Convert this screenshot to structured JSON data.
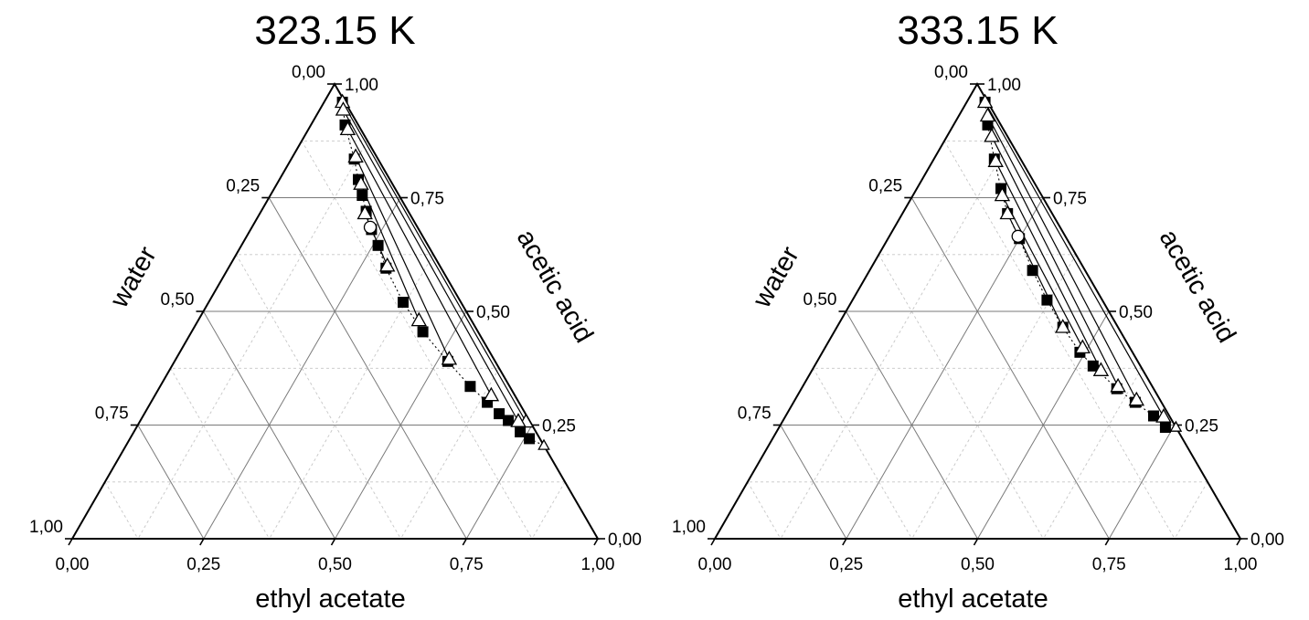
{
  "chart_data": [
    {
      "type": "scatter",
      "subtype": "ternary",
      "title": "323.15 K",
      "axes": {
        "bottom": {
          "label": "ethyl acetate",
          "ticks": [
            "0,00",
            "0,25",
            "0,50",
            "0,75",
            "1,00"
          ]
        },
        "left": {
          "label": "water",
          "ticks": [
            "0,00",
            "0,25",
            "0,50",
            "0,75",
            "1,00"
          ]
        },
        "right": {
          "label": "acetic acid",
          "ticks": [
            "1,00",
            "0,75",
            "0,50",
            "0,25",
            "0,00"
          ]
        }
      },
      "grid": true,
      "solubility_curve": [
        [
          0.035,
          0.005
        ],
        [
          0.065,
          0.025
        ],
        [
          0.12,
          0.045
        ],
        [
          0.15,
          0.06
        ],
        [
          0.175,
          0.07
        ],
        [
          0.2,
          0.08
        ],
        [
          0.23,
          0.09
        ],
        [
          0.26,
          0.095
        ],
        [
          0.3,
          0.105
        ],
        [
          0.37,
          0.11
        ],
        [
          0.44,
          0.105
        ],
        [
          0.52,
          0.09
        ],
        [
          0.59,
          0.075
        ],
        [
          0.64,
          0.06
        ],
        [
          0.675,
          0.05
        ],
        [
          0.7,
          0.04
        ],
        [
          0.735,
          0.03
        ],
        [
          0.76,
          0.02
        ]
      ],
      "plait_point": [
        0.225,
        0.09
      ],
      "tie_lines": [
        {
          "aqueous": [
            0.035,
            0.005
          ],
          "organic": [
            0.735,
            0.008
          ]
        },
        {
          "aqueous": [
            0.045,
            0.012
          ],
          "organic": [
            0.72,
            0.022
          ]
        },
        {
          "aqueous": [
            0.075,
            0.025
          ],
          "organic": [
            0.64,
            0.045
          ]
        },
        {
          "aqueous": [
            0.12,
            0.04
          ],
          "organic": [
            0.52,
            0.085
          ]
        },
        {
          "aqueous": [
            0.16,
            0.06
          ],
          "organic": [
            0.42,
            0.1
          ]
        },
        {
          "aqueous": [
            0.2,
            0.085
          ],
          "organic": [
            0.3,
            0.1
          ]
        }
      ],
      "endpoint": [
        0.795,
        0.0
      ]
    },
    {
      "type": "scatter",
      "subtype": "ternary",
      "title": "333.15 K",
      "axes": {
        "bottom": {
          "label": "ethyl acetate",
          "ticks": [
            "0,00",
            "0,25",
            "0,50",
            "0,75",
            "1,00"
          ]
        },
        "left": {
          "label": "water",
          "ticks": [
            "0,00",
            "0,25",
            "0,50",
            "0,75",
            "1,00"
          ]
        },
        "right": {
          "label": "acetic acid",
          "ticks": [
            "1,00",
            "0,75",
            "0,50",
            "0,25",
            "0,00"
          ]
        }
      },
      "grid": true,
      "solubility_curve": [
        [
          0.035,
          0.005
        ],
        [
          0.065,
          0.025
        ],
        [
          0.115,
          0.05
        ],
        [
          0.16,
          0.07
        ],
        [
          0.2,
          0.085
        ],
        [
          0.25,
          0.09
        ],
        [
          0.31,
          0.1
        ],
        [
          0.37,
          0.105
        ],
        [
          0.43,
          0.105
        ],
        [
          0.49,
          0.1
        ],
        [
          0.53,
          0.09
        ],
        [
          0.6,
          0.07
        ],
        [
          0.65,
          0.05
        ],
        [
          0.7,
          0.03
        ],
        [
          0.735,
          0.02
        ]
      ],
      "plait_point": [
        0.245,
        0.09
      ],
      "tie_lines": [
        {
          "aqueous": [
            0.035,
            0.005
          ],
          "organic": [
            0.72,
            0.012
          ]
        },
        {
          "aqueous": [
            0.055,
            0.015
          ],
          "organic": [
            0.65,
            0.045
          ]
        },
        {
          "aqueous": [
            0.085,
            0.03
          ],
          "organic": [
            0.6,
            0.065
          ]
        },
        {
          "aqueous": [
            0.12,
            0.05
          ],
          "organic": [
            0.55,
            0.08
          ]
        },
        {
          "aqueous": [
            0.17,
            0.075
          ],
          "organic": [
            0.49,
            0.09
          ]
        },
        {
          "aqueous": [
            0.2,
            0.085
          ],
          "organic": [
            0.43,
            0.105
          ]
        }
      ],
      "endpoint": [
        0.755,
        0.0
      ]
    }
  ]
}
